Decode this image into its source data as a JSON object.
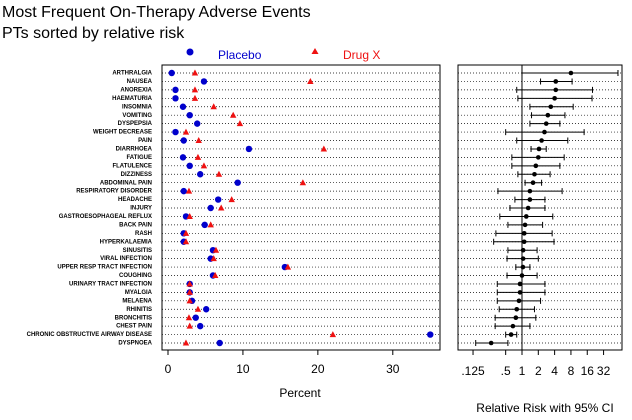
{
  "chart_data": [
    {
      "type": "dot",
      "title": "Most Frequent On-Therapy Adverse Events",
      "subtitle": "PTs sorted by relative risk",
      "categories": [
        "ARTHRALGIA",
        "NAUSEA",
        "ANOREXIA",
        "HAEMATURIA",
        "INSOMNIA",
        "VOMITING",
        "DYSPEPSIA",
        "WEIGHT DECREASE",
        "PAIN",
        "DIARRHOEA",
        "FATIGUE",
        "FLATULENCE",
        "DIZZINESS",
        "ABDOMINAL PAIN",
        "RESPIRATORY DISORDER",
        "HEADACHE",
        "INJURY",
        "GASTROESOPHAGEAL REFLUX",
        "BACK PAIN",
        "RASH",
        "HYPERKALAEMIA",
        "SINUSITIS",
        "VIRAL INFECTION",
        "UPPER RESP TRACT INFECTION",
        "COUGHING",
        "URINARY TRACT INFECTION",
        "MYALGIA",
        "MELAENA",
        "RHINITIS",
        "BRONCHITIS",
        "CHEST PAIN",
        "CHRONIC OBSTRUCTIVE AIRWAY DISEASE",
        "DYSPNOEA"
      ],
      "series": [
        {
          "name": "Placebo",
          "color": "#0000cc",
          "marker": "circle",
          "values": [
            0.5,
            4.8,
            1,
            1,
            2,
            2.9,
            3.9,
            1,
            2.1,
            10.8,
            2,
            2.9,
            4.3,
            9.3,
            2.1,
            6.7,
            5.7,
            2.4,
            4.9,
            2.1,
            2.1,
            6,
            5.7,
            15.6,
            6,
            2.9,
            2.9,
            3.2,
            5.1,
            3.7,
            4.3,
            35,
            6.9
          ]
        },
        {
          "name": "Drug X",
          "color": "#ee1111",
          "marker": "triangle",
          "values": [
            3.6,
            19,
            3.6,
            3.6,
            6.1,
            8.7,
            9.6,
            2.4,
            4.1,
            20.8,
            4,
            4.8,
            6.8,
            18,
            2.8,
            8.5,
            7.1,
            2.9,
            5.7,
            2.4,
            2.4,
            6.4,
            6.1,
            16,
            6.3,
            2.9,
            2.9,
            2.9,
            4,
            2.8,
            2.9,
            22,
            2.4
          ]
        }
      ],
      "xlim": [
        -0.8,
        36.3
      ],
      "xticks": [
        0,
        10,
        20,
        30
      ],
      "xlabel": "Percent",
      "grid": true
    },
    {
      "type": "interval",
      "values": [
        8,
        4.2,
        4.2,
        4,
        3.4,
        3,
        2.8,
        2.6,
        2.3,
        2.06,
        2,
        1.8,
        1.7,
        1.6,
        1.4,
        1.4,
        1.3,
        1.2,
        1.14,
        1.1,
        1.1,
        1.05,
        1.05,
        1.04,
        1,
        0.92,
        0.92,
        0.88,
        0.8,
        0.77,
        0.68,
        0.63,
        0.27
      ],
      "lower": [
        1,
        2.2,
        0.8,
        0.84,
        1.4,
        1.5,
        1.4,
        0.5,
        0.8,
        1.47,
        0.65,
        0.65,
        0.84,
        1.14,
        0.36,
        0.74,
        0.6,
        0.39,
        0.55,
        0.33,
        0.3,
        0.55,
        0.53,
        0.77,
        0.53,
        0.35,
        0.35,
        0.35,
        0.38,
        0.32,
        0.32,
        0.5,
        0.14
      ],
      "upper": [
        59,
        8.4,
        20,
        19.6,
        8.8,
        6.2,
        5,
        14,
        7,
        2.8,
        6,
        5,
        3.3,
        2.3,
        5.5,
        2.65,
        2.65,
        3.7,
        2.4,
        3.6,
        3.9,
        1.9,
        2,
        1.4,
        1.9,
        2.65,
        2.65,
        2.2,
        1.7,
        1.8,
        1.4,
        0.8,
        0.55
      ],
      "color": "#000000",
      "xlim": [
        0.066,
        70
      ],
      "log_scale": true,
      "xticks": [
        {
          "value": 0.125,
          "label": ".125"
        },
        {
          "value": 0.5,
          "label": ".5"
        },
        1,
        2,
        4,
        8,
        16,
        32
      ],
      "reference_line": 1,
      "xlabel": "Relative Risk with 95% CI",
      "grid": true
    }
  ]
}
